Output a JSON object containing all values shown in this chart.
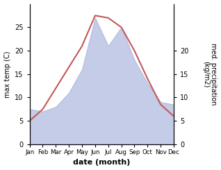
{
  "months": [
    "Jan",
    "Feb",
    "Mar",
    "Apr",
    "May",
    "Jun",
    "Jul",
    "Aug",
    "Sep",
    "Oct",
    "Nov",
    "Dec"
  ],
  "max_temp": [
    5.0,
    7.5,
    12.0,
    16.5,
    21.0,
    27.5,
    27.0,
    25.0,
    20.0,
    14.0,
    8.5,
    6.0
  ],
  "precipitation": [
    7.5,
    7.0,
    8.0,
    11.0,
    16.0,
    27.0,
    21.0,
    25.0,
    18.0,
    13.0,
    9.0,
    8.5
  ],
  "temp_color": "#c45858",
  "precip_fill_color": "#c5cce8",
  "precip_edge_color": "#b0bae0",
  "temp_ylim": [
    0,
    30
  ],
  "precip_ylim": [
    0,
    30
  ],
  "temp_yticks": [
    0,
    5,
    10,
    15,
    20,
    25
  ],
  "precip_yticks": [
    0,
    5,
    10,
    15,
    20
  ],
  "precip_yticklabels": [
    "0",
    "5",
    "10",
    "15",
    "20"
  ],
  "xlabel": "date (month)",
  "ylabel_left": "max temp (C)",
  "ylabel_right": "med. precipitation\n(kg/m2)",
  "background_color": "#ffffff"
}
